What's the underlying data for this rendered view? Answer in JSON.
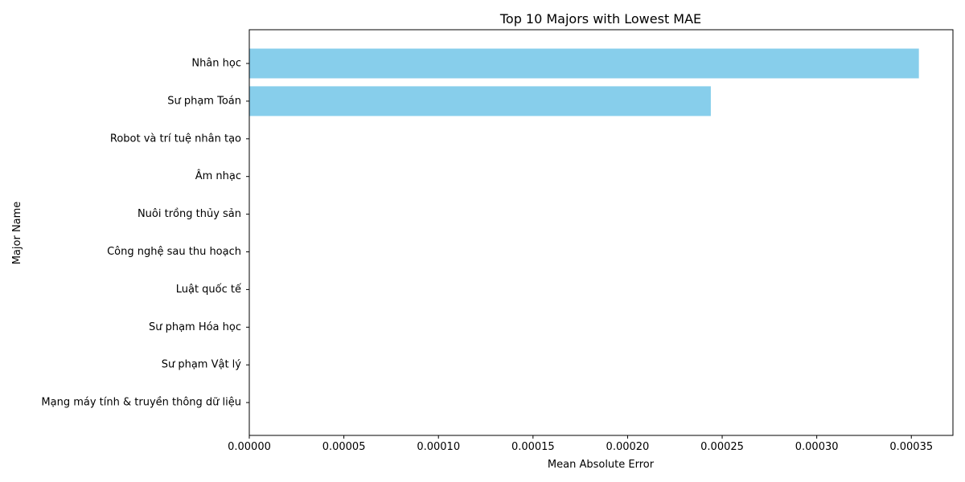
{
  "chart_data": {
    "type": "bar",
    "orientation": "horizontal",
    "title": "Top 10 Majors with Lowest MAE",
    "xlabel": "Mean Absolute Error",
    "ylabel": "Major Name",
    "xlim": [
      0,
      0.000372
    ],
    "xticks": [
      "0.00000",
      "0.00005",
      "0.00010",
      "0.00015",
      "0.00020",
      "0.00025",
      "0.00030",
      "0.00035"
    ],
    "xtick_values": [
      0,
      5e-05,
      0.0001,
      0.00015,
      0.0002,
      0.00025,
      0.0003,
      0.00035
    ],
    "categories": [
      "Nhân học",
      "Sư phạm Toán",
      "Robot và trí tuệ nhân tạo",
      "Âm nhạc",
      "Nuôi trồng thủy sản",
      "Công nghệ sau thu hoạch",
      "Luật quốc tế",
      "Sư phạm Hóa học",
      "Sư phạm Vật lý",
      "Mạng máy tính & truyền thông dữ liệu"
    ],
    "values": [
      0.000354,
      0.000244,
      0,
      0,
      0,
      0,
      0,
      0,
      0,
      0
    ],
    "bar_color": "#87ceeb",
    "grid": false,
    "legend": "none"
  }
}
